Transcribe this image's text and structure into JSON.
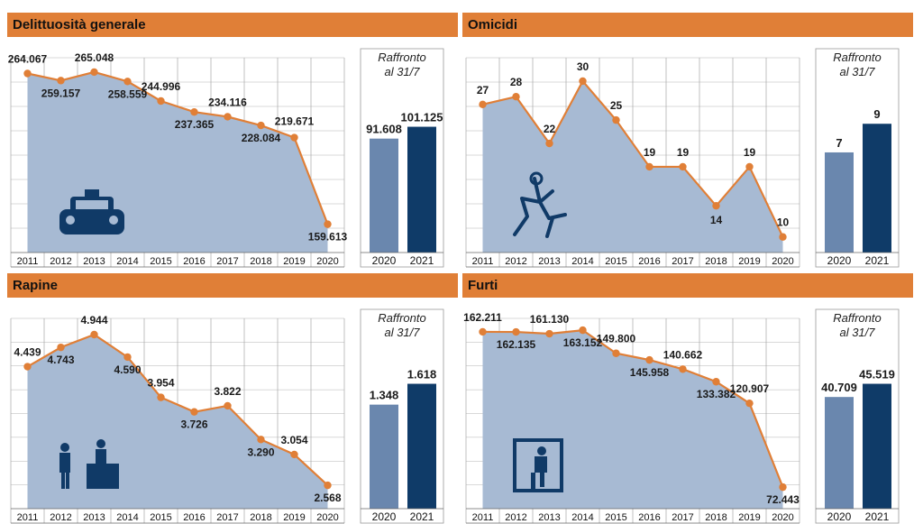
{
  "colors": {
    "header": "#e07f37",
    "area": "#a7bad3",
    "line": "#e07f37",
    "bar2020": "#6a87ae",
    "bar2021": "#0f3b68",
    "grid": "#b3b3b3"
  },
  "panels": [
    {
      "title": "Delittuosità generale",
      "icon": "police-car-icon",
      "comparison": {
        "label_line1": "Raffronto",
        "label_line2": "al 31/7",
        "years": [
          "2020",
          "2021"
        ],
        "values": [
          91.608,
          101.125
        ],
        "labels": [
          "91.608",
          "101.125"
        ]
      }
    },
    {
      "title": "Omicidi",
      "icon": "chalk-outline-icon",
      "comparison": {
        "label_line1": "Raffronto",
        "label_line2": "al 31/7",
        "years": [
          "2020",
          "2021"
        ],
        "values": [
          7,
          9
        ],
        "labels": [
          "7",
          "9"
        ]
      }
    },
    {
      "title": "Rapine",
      "icon": "robbery-icon",
      "comparison": {
        "label_line1": "Raffronto",
        "label_line2": "al 31/7",
        "years": [
          "2020",
          "2021"
        ],
        "values": [
          1.348,
          1.618
        ],
        "labels": [
          "1.348",
          "1.618"
        ]
      }
    },
    {
      "title": "Furti",
      "icon": "burglar-window-icon",
      "comparison": {
        "label_line1": "Raffronto",
        "label_line2": "al 31/7",
        "years": [
          "2020",
          "2021"
        ],
        "values": [
          40.709,
          45.519
        ],
        "labels": [
          "40.709",
          "45.519"
        ]
      }
    }
  ],
  "chart_data": [
    {
      "type": "area",
      "title": "Delittuosità generale",
      "categories": [
        "2011",
        "2012",
        "2013",
        "2014",
        "2015",
        "2016",
        "2017",
        "2018",
        "2019",
        "2020"
      ],
      "values": [
        264.067,
        259.157,
        265.048,
        258.559,
        244.996,
        237.365,
        234.116,
        228.084,
        219.671,
        159.613
      ],
      "labels": [
        "264.067",
        "259.157",
        "265.048",
        "258.559",
        "244.996",
        "237.365",
        "234.116",
        "228.084",
        "219.671",
        "159.613"
      ]
    },
    {
      "type": "area",
      "title": "Omicidi",
      "categories": [
        "2011",
        "2012",
        "2013",
        "2014",
        "2015",
        "2016",
        "2017",
        "2018",
        "2019",
        "2020"
      ],
      "values": [
        27,
        28,
        22,
        30,
        25,
        19,
        19,
        14,
        19,
        10
      ],
      "labels": [
        "27",
        "28",
        "22",
        "30",
        "25",
        "19",
        "19",
        "14",
        "19",
        "10"
      ]
    },
    {
      "type": "area",
      "title": "Rapine",
      "categories": [
        "2011",
        "2012",
        "2013",
        "2014",
        "2015",
        "2016",
        "2017",
        "2018",
        "2019",
        "2020"
      ],
      "values": [
        4.439,
        4.743,
        4.944,
        4.59,
        3.954,
        3.726,
        3.822,
        3.29,
        3.054,
        2.568
      ],
      "labels": [
        "4.439",
        "4.743",
        "4.944",
        "4.590",
        "3.954",
        "3.726",
        "3.822",
        "3.290",
        "3.054",
        "2.568"
      ]
    },
    {
      "type": "area",
      "title": "Furti",
      "categories": [
        "2011",
        "2012",
        "2013",
        "2014",
        "2015",
        "2016",
        "2017",
        "2018",
        "2019",
        "2020"
      ],
      "values": [
        162.211,
        162.135,
        161.13,
        163.152,
        149.8,
        145.958,
        140.662,
        133.382,
        120.907,
        72.443
      ],
      "labels": [
        "162.211",
        "162.135",
        "161.130",
        "163.152",
        "149.800",
        "145.958",
        "140.662",
        "133.382",
        "120.907",
        "72.443"
      ]
    }
  ]
}
